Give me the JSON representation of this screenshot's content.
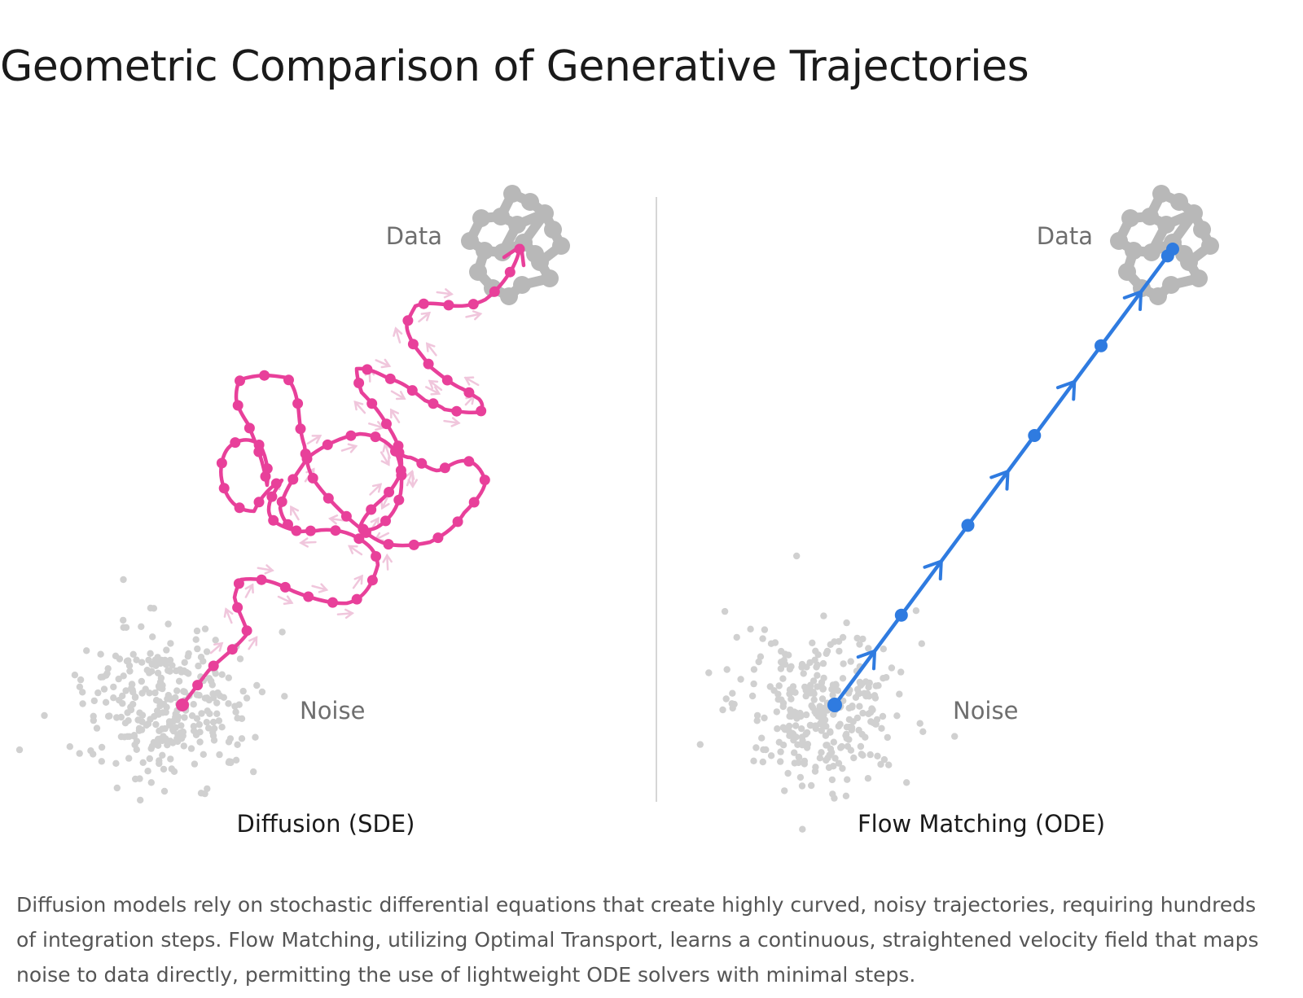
{
  "title": "Geometric Comparison of Generative Trajectories",
  "panels": [
    {
      "data_label": "Data",
      "noise_label": "Noise",
      "subtitle": "Diffusion (SDE)",
      "path_color": "#e8409a",
      "arrow_color": "#f0c6dc"
    },
    {
      "data_label": "Data",
      "noise_label": "Noise",
      "subtitle": "Flow Matching (ODE)",
      "path_color": "#2f7be0"
    }
  ],
  "colors": {
    "data_cluster": "#b8b8b8",
    "noise_dots": "#d0d0d0",
    "divider": "#d6d6d6",
    "caption_text": "#555555"
  },
  "caption": "Diffusion models rely on stochastic differential equations that create highly curved, noisy trajectories, requiring hundreds of integration steps. Flow Matching, utilizing Optimal Transport, learns a continuous, straightened velocity field that maps noise to data directly, permitting the use of lightweight ODE solvers with minimal steps."
}
